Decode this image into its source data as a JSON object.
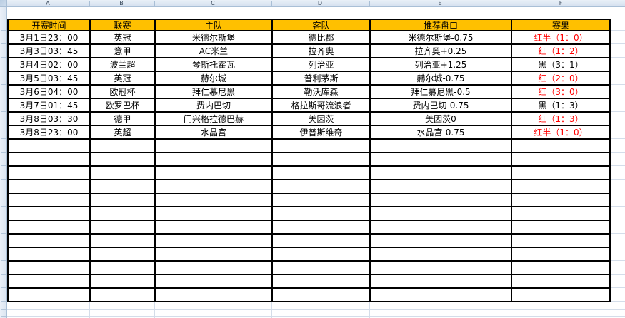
{
  "sheet": {
    "column_letters": [
      "A",
      "B",
      "C",
      "D",
      "E",
      "F"
    ],
    "colors": {
      "header_fill": "#FFC000",
      "result_red": "#FF0000",
      "result_black": "#000000",
      "table_border": "#000000"
    }
  },
  "table": {
    "headers": [
      "开赛时间",
      "联赛",
      "主队",
      "客队",
      "推荐盘口",
      "赛果"
    ],
    "rows": [
      {
        "time": "3月1日23：00",
        "league": "英冠",
        "home": "米德尔斯堡",
        "away": "德比郡",
        "handicap": "米德尔斯堡-0.75",
        "result": "红半（1：0）",
        "result_color": "#FF0000"
      },
      {
        "time": "3月3日03：45",
        "league": "意甲",
        "home": "AC米兰",
        "away": "拉齐奥",
        "handicap": "拉齐奥+0.25",
        "result": "红（1：2）",
        "result_color": "#FF0000"
      },
      {
        "time": "3月4日02：00",
        "league": "波兰超",
        "home": "琴斯托霍瓦",
        "away": "列治亚",
        "handicap": "列治亚+1.25",
        "result": "黑（3：1）",
        "result_color": "#000000"
      },
      {
        "time": "3月5日03：45",
        "league": "英冠",
        "home": "赫尔城",
        "away": "普利茅斯",
        "handicap": "赫尔城-0.75",
        "result": "红（2：0）",
        "result_color": "#FF0000"
      },
      {
        "time": "3月6日04：00",
        "league": "欧冠杯",
        "home": "拜仁慕尼黑",
        "away": "勒沃库森",
        "handicap": "拜仁慕尼黑-0.5",
        "result": "红（3：0）",
        "result_color": "#FF0000"
      },
      {
        "time": "3月7日01：45",
        "league": "欧罗巴杯",
        "home": "费内巴切",
        "away": "格拉斯哥流浪者",
        "handicap": "费内巴切-0.75",
        "result": "黑（1：3）",
        "result_color": "#000000"
      },
      {
        "time": "3月8日03：30",
        "league": "德甲",
        "home": "门兴格拉德巴赫",
        "away": "美因茨",
        "handicap": "美因茨0",
        "result": "红（1：3）",
        "result_color": "#FF0000"
      },
      {
        "time": "3月8日23：00",
        "league": "英超",
        "home": "水晶宫",
        "away": "伊普斯维奇",
        "handicap": "水晶宫-0.75",
        "result": "红半（1：0）",
        "result_color": "#FF0000"
      }
    ],
    "empty_row_count": 12
  }
}
